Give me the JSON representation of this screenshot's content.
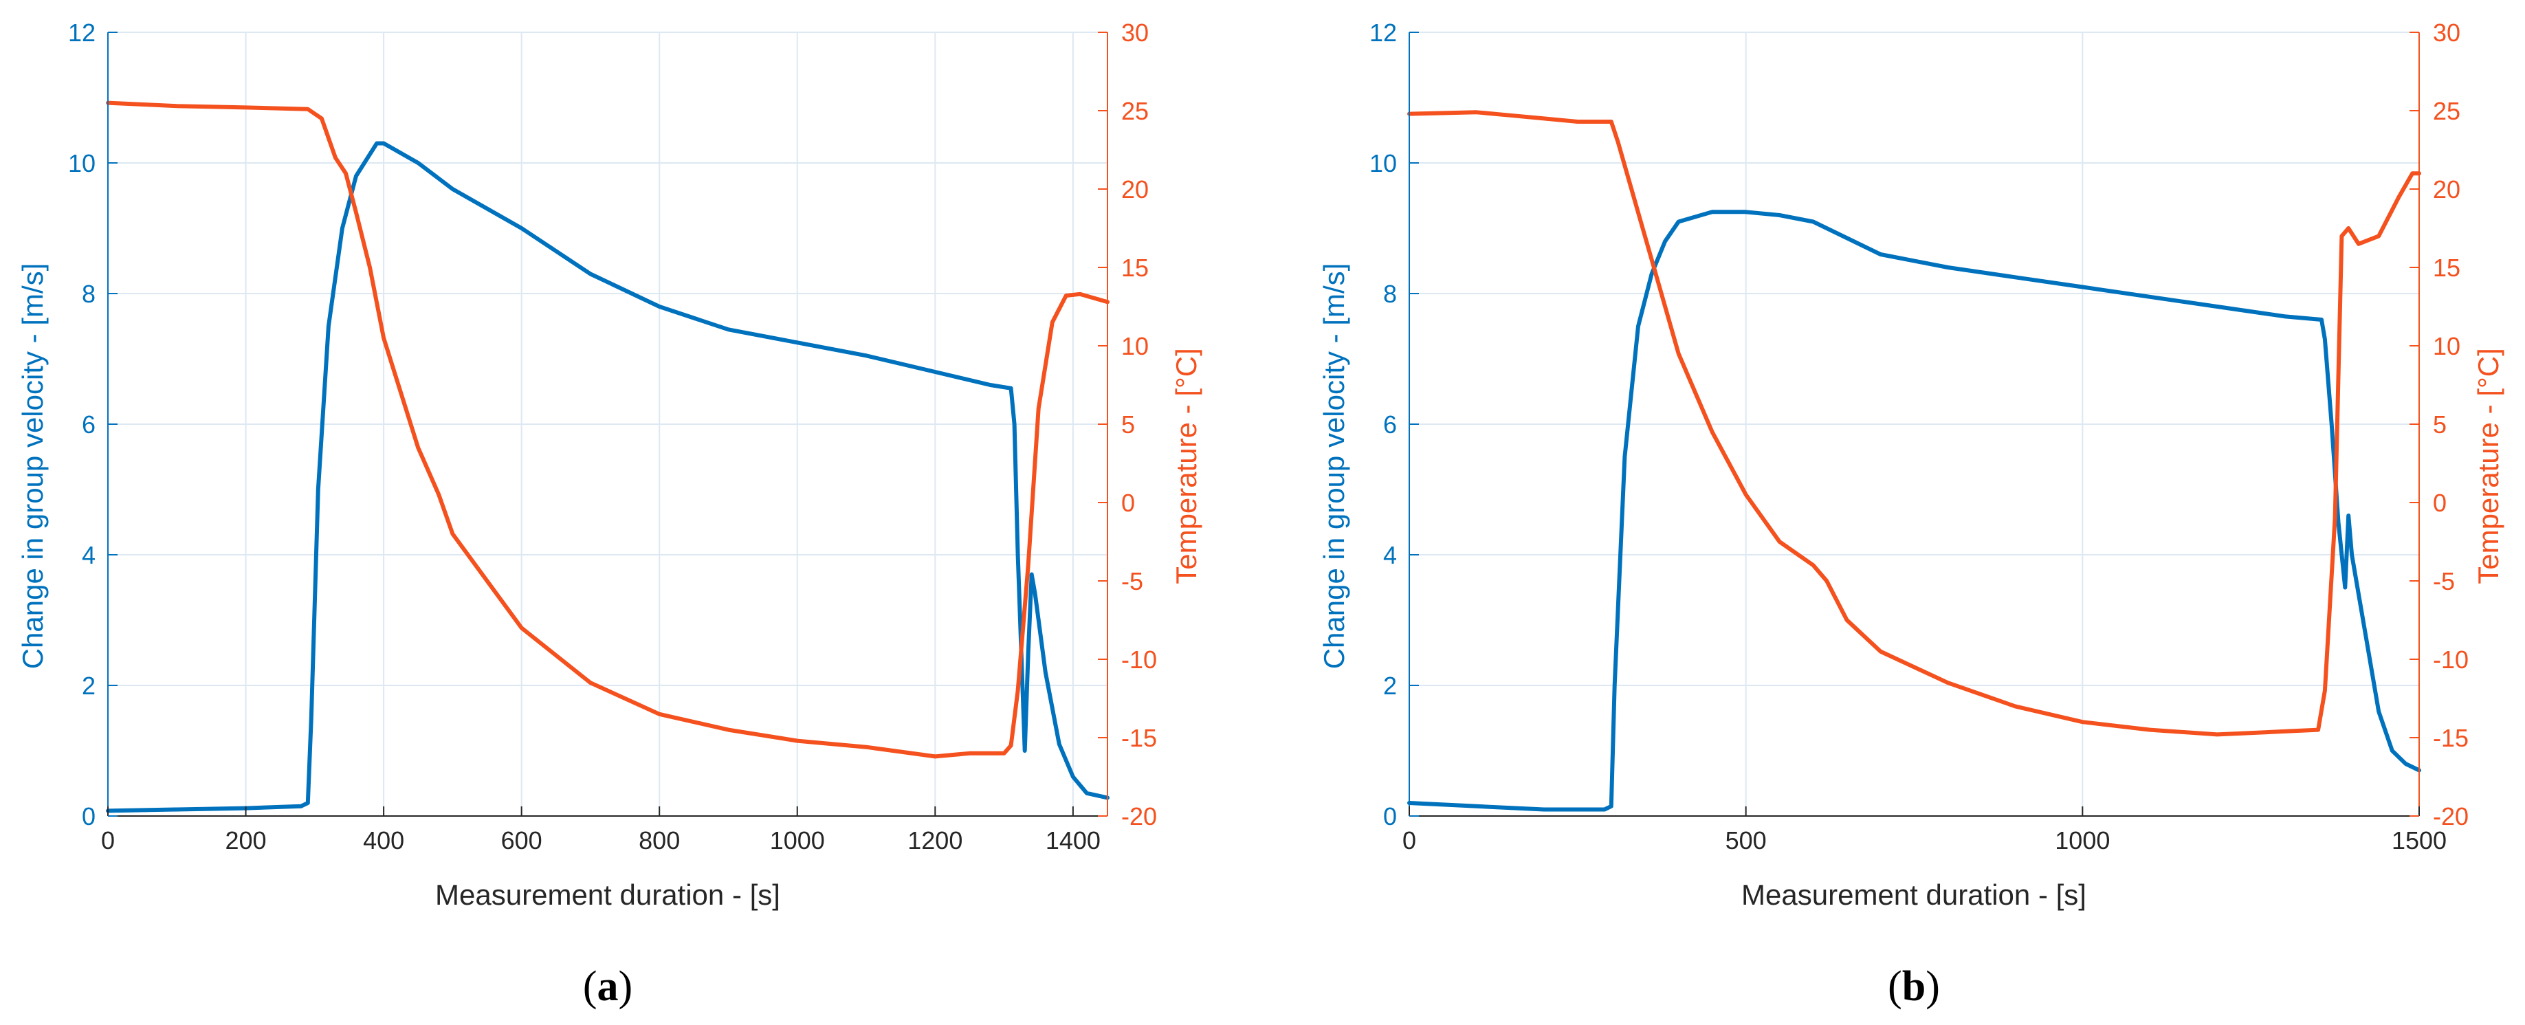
{
  "colors": {
    "velocity": "#0072BD",
    "temperature": "#F4511E",
    "grid": "#dde8f3",
    "axis": "#262626"
  },
  "chart_data": [
    {
      "type": "line",
      "panel_label": "(a)",
      "panel_letter": "a",
      "xlabel": "Measurement duration - [s]",
      "ylabel_left": "Change in group velocity - [m/s]",
      "ylabel_right": "Temperature - [°C]",
      "xlim": [
        0,
        1450
      ],
      "ylim_left": [
        0,
        12
      ],
      "ylim_right": [
        -20,
        30
      ],
      "xticks": [
        0,
        200,
        400,
        600,
        800,
        1000,
        1200,
        1400
      ],
      "yticks_left": [
        0,
        2,
        4,
        6,
        8,
        10,
        12
      ],
      "yticks_right": [
        -20,
        -15,
        -10,
        -5,
        0,
        5,
        10,
        15,
        20,
        25,
        30
      ],
      "grid": true,
      "series": [
        {
          "name": "Change in group velocity",
          "axis": "left",
          "x": [
            0,
            100,
            200,
            280,
            290,
            295,
            305,
            320,
            340,
            360,
            390,
            400,
            450,
            500,
            600,
            700,
            800,
            900,
            1000,
            1100,
            1200,
            1280,
            1310,
            1315,
            1320,
            1330,
            1335,
            1340,
            1345,
            1360,
            1380,
            1400,
            1420,
            1450
          ],
          "values": [
            0.08,
            0.1,
            0.12,
            0.15,
            0.2,
            1.5,
            5.0,
            7.5,
            9.0,
            9.8,
            10.3,
            10.3,
            10.0,
            9.6,
            9.0,
            8.3,
            7.8,
            7.45,
            7.25,
            7.05,
            6.8,
            6.6,
            6.55,
            6.0,
            4.0,
            1.0,
            2.5,
            3.7,
            3.4,
            2.2,
            1.1,
            0.6,
            0.35,
            0.28
          ]
        },
        {
          "name": "Temperature",
          "axis": "right",
          "x": [
            0,
            100,
            200,
            290,
            310,
            330,
            345,
            360,
            380,
            400,
            450,
            480,
            500,
            600,
            700,
            800,
            900,
            1000,
            1100,
            1200,
            1250,
            1300,
            1310,
            1320,
            1335,
            1350,
            1370,
            1390,
            1410,
            1450
          ],
          "values": [
            25.5,
            25.3,
            25.2,
            25.1,
            24.5,
            22.0,
            21.0,
            18.5,
            15.0,
            10.5,
            3.5,
            0.5,
            -2.0,
            -8.0,
            -11.5,
            -13.5,
            -14.5,
            -15.2,
            -15.6,
            -16.2,
            -16.0,
            -16.0,
            -15.5,
            -12.0,
            -4.0,
            6.0,
            11.5,
            13.2,
            13.3,
            12.8
          ]
        }
      ]
    },
    {
      "type": "line",
      "panel_label": "(b)",
      "panel_letter": "b",
      "xlabel": "Measurement duration - [s]",
      "ylabel_left": "Change in group velocity - [m/s]",
      "ylabel_right": "Temperature - [°C]",
      "xlim": [
        0,
        1500
      ],
      "ylim_left": [
        0,
        12
      ],
      "ylim_right": [
        -20,
        30
      ],
      "xticks": [
        0,
        500,
        1000,
        1500
      ],
      "yticks_left": [
        0,
        2,
        4,
        6,
        8,
        10,
        12
      ],
      "yticks_right": [
        -20,
        -15,
        -10,
        -5,
        0,
        5,
        10,
        15,
        20,
        25,
        30
      ],
      "grid": true,
      "series": [
        {
          "name": "Change in group velocity",
          "axis": "left",
          "x": [
            0,
            100,
            200,
            290,
            300,
            305,
            320,
            340,
            360,
            380,
            400,
            450,
            500,
            550,
            600,
            700,
            800,
            900,
            1000,
            1100,
            1200,
            1300,
            1355,
            1360,
            1370,
            1380,
            1390,
            1395,
            1400,
            1420,
            1440,
            1460,
            1480,
            1500
          ],
          "values": [
            0.2,
            0.15,
            0.1,
            0.1,
            0.15,
            2.0,
            5.5,
            7.5,
            8.3,
            8.8,
            9.1,
            9.25,
            9.25,
            9.2,
            9.1,
            8.6,
            8.4,
            8.25,
            8.1,
            7.95,
            7.8,
            7.65,
            7.6,
            7.3,
            6.0,
            4.5,
            3.5,
            4.6,
            4.0,
            2.8,
            1.6,
            1.0,
            0.8,
            0.7
          ]
        },
        {
          "name": "Temperature",
          "axis": "right",
          "x": [
            0,
            100,
            150,
            200,
            250,
            300,
            310,
            330,
            350,
            370,
            400,
            450,
            500,
            550,
            600,
            620,
            650,
            700,
            800,
            900,
            1000,
            1100,
            1200,
            1300,
            1350,
            1360,
            1375,
            1380,
            1385,
            1395,
            1410,
            1440,
            1470,
            1490,
            1500
          ],
          "values": [
            24.8,
            24.9,
            24.7,
            24.5,
            24.3,
            24.3,
            23.0,
            20.0,
            17.0,
            14.0,
            9.5,
            4.5,
            0.5,
            -2.5,
            -4.0,
            -5.0,
            -7.5,
            -9.5,
            -11.5,
            -13.0,
            -14.0,
            -14.5,
            -14.8,
            -14.6,
            -14.5,
            -12.0,
            -1.0,
            8.0,
            17.0,
            17.5,
            16.5,
            17.0,
            19.5,
            21.0,
            21.0
          ]
        }
      ]
    }
  ]
}
